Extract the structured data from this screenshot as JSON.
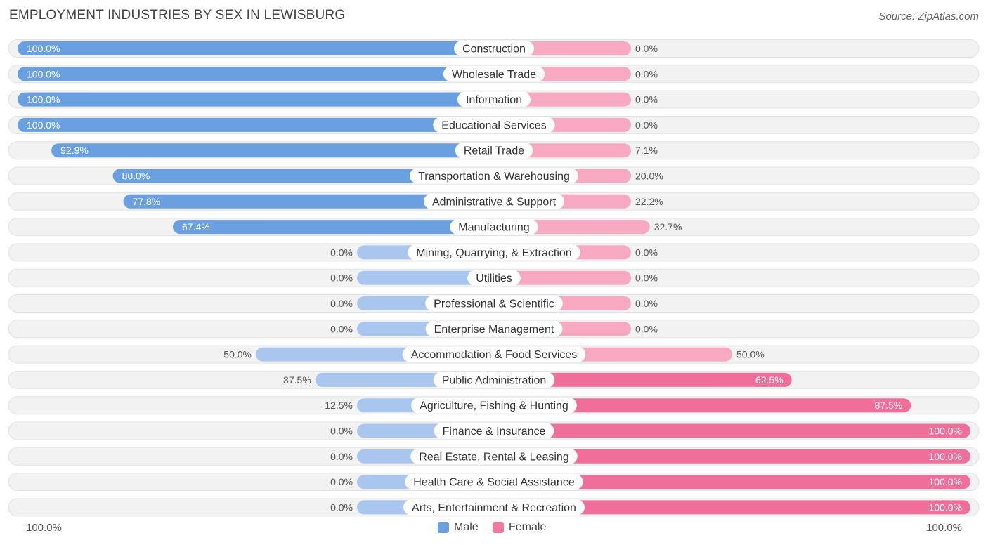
{
  "title": "EMPLOYMENT INDUSTRIES BY SEX IN LEWISBURG",
  "source": "Source: ZipAtlas.com",
  "axis_left_label": "100.0%",
  "axis_right_label": "100.0%",
  "legend": [
    {
      "label": "Male",
      "color": "#6ba1e0"
    },
    {
      "label": "Female",
      "color": "#f07aa0"
    }
  ],
  "colors": {
    "male_strong": "#6a9fe0",
    "male_light": "#a9c7ee",
    "female_strong": "#f06f9a",
    "female_light": "#f7a9c2",
    "row_background": "#f2f2f2"
  },
  "chart_data": {
    "type": "bar",
    "orientation": "horizontal-diverging",
    "xlim": [
      -100,
      100
    ],
    "series": [
      {
        "name": "Male",
        "values": [
          100.0,
          100.0,
          100.0,
          100.0,
          92.9,
          80.0,
          77.8,
          67.4,
          0.0,
          0.0,
          0.0,
          0.0,
          50.0,
          37.5,
          12.5,
          0.0,
          0.0,
          0.0,
          0.0
        ]
      },
      {
        "name": "Female",
        "values": [
          0.0,
          0.0,
          0.0,
          0.0,
          7.1,
          20.0,
          22.2,
          32.7,
          0.0,
          0.0,
          0.0,
          0.0,
          50.0,
          62.5,
          87.5,
          100.0,
          100.0,
          100.0,
          100.0
        ]
      }
    ],
    "categories": [
      "Construction",
      "Wholesale Trade",
      "Information",
      "Educational Services",
      "Retail Trade",
      "Transportation & Warehousing",
      "Administrative & Support",
      "Manufacturing",
      "Mining, Quarrying, & Extraction",
      "Utilities",
      "Professional & Scientific",
      "Enterprise Management",
      "Accommodation & Food Services",
      "Public Administration",
      "Agriculture, Fishing & Hunting",
      "Finance & Insurance",
      "Real Estate, Rental & Leasing",
      "Health Care & Social Assistance",
      "Arts, Entertainment & Recreation"
    ],
    "male_labels": [
      "100.0%",
      "100.0%",
      "100.0%",
      "100.0%",
      "92.9%",
      "80.0%",
      "77.8%",
      "67.4%",
      "0.0%",
      "0.0%",
      "0.0%",
      "0.0%",
      "50.0%",
      "37.5%",
      "12.5%",
      "0.0%",
      "0.0%",
      "0.0%",
      "0.0%"
    ],
    "female_labels": [
      "0.0%",
      "0.0%",
      "0.0%",
      "0.0%",
      "7.1%",
      "20.0%",
      "22.2%",
      "32.7%",
      "0.0%",
      "0.0%",
      "0.0%",
      "0.0%",
      "50.0%",
      "62.5%",
      "87.5%",
      "100.0%",
      "100.0%",
      "100.0%",
      "100.0%"
    ]
  }
}
